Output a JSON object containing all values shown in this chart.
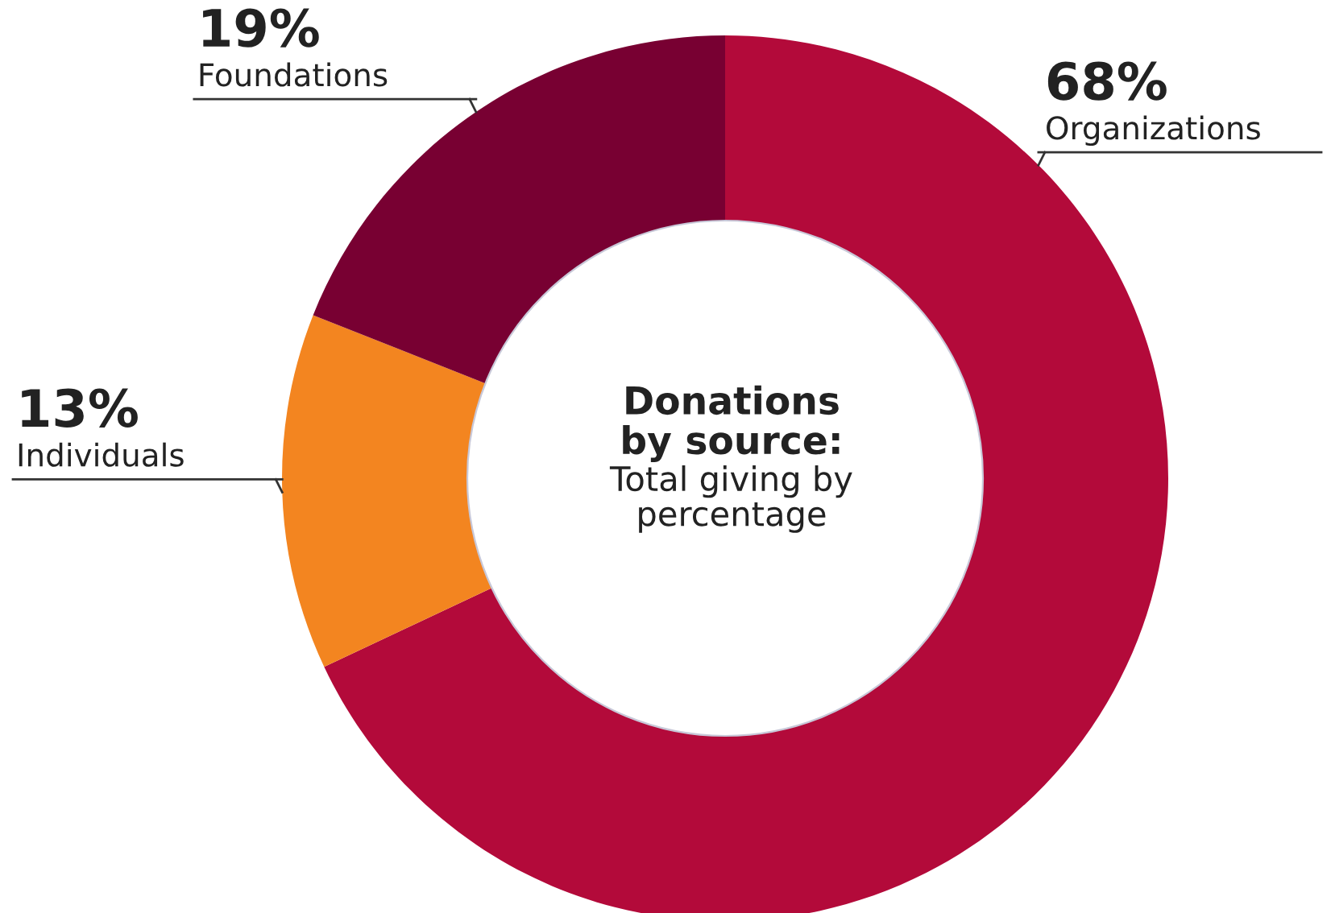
{
  "chart_data": {
    "type": "donut",
    "title": "Donations\nby source:",
    "subtitle": "Total giving by\npercentage",
    "categories": [
      "Organizations",
      "Individuals",
      "Foundations"
    ],
    "values": [
      68,
      13,
      19
    ],
    "value_labels": [
      "68%",
      "13%",
      "19%"
    ],
    "colors": [
      "#b30a3a",
      "#f38520",
      "#780032"
    ]
  }
}
